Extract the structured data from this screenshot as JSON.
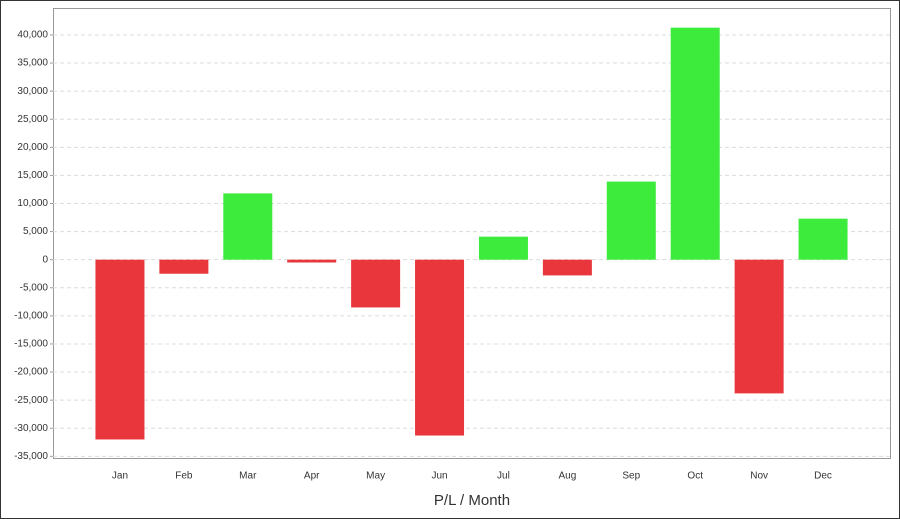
{
  "chart_data": {
    "type": "bar",
    "x_label": "P/L / Month",
    "categories": [
      "Jan",
      "Feb",
      "Mar",
      "Apr",
      "May",
      "Jun",
      "Jul",
      "Aug",
      "Sep",
      "Oct",
      "Nov",
      "Dec"
    ],
    "values": [
      -32000,
      -2500,
      11800,
      -500,
      -8500,
      -31300,
      4100,
      -2800,
      13900,
      41300,
      -23800,
      7300
    ],
    "positive_color": "#3deb3d",
    "negative_color": "#e8363c",
    "ylim": [
      -35300,
      44800
    ],
    "yticks": [
      {
        "value": -35000,
        "label": "-35,000"
      },
      {
        "value": -30000,
        "label": "-30,000"
      },
      {
        "value": -25000,
        "label": "-25,000"
      },
      {
        "value": -20000,
        "label": "-20,000"
      },
      {
        "value": -15000,
        "label": "-15,000"
      },
      {
        "value": -10000,
        "label": "-10,000"
      },
      {
        "value": -5000,
        "label": "-5,000"
      },
      0,
      {
        "value": 5000,
        "label": "5,000"
      },
      {
        "value": 10000,
        "label": "10,000"
      },
      {
        "value": 15000,
        "label": "15,000"
      },
      {
        "value": 20000,
        "label": "20,000"
      },
      {
        "value": 25000,
        "label": "25,000"
      },
      {
        "value": 30000,
        "label": "30,000"
      },
      {
        "value": 35000,
        "label": "35,000"
      },
      {
        "value": 40000,
        "label": "40,000"
      }
    ],
    "grid": true
  }
}
